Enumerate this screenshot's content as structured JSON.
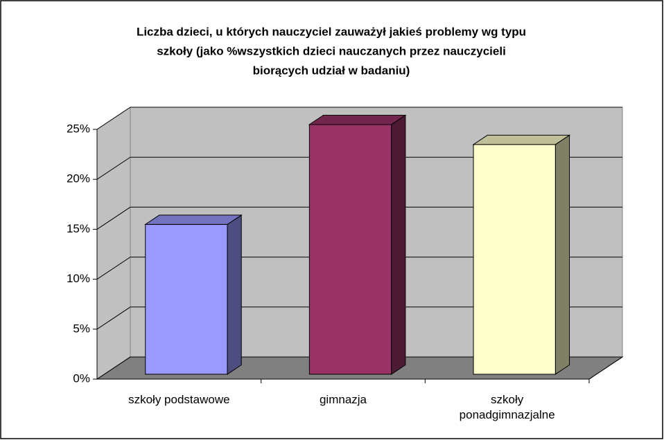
{
  "chart_data": {
    "type": "bar3d",
    "title": [
      "Liczba dzieci, u których nauczyciel zauważył jakieś problemy wg typu",
      "szkoły (jako %wszystkich dzieci nauczanych przez nauczycieli",
      "biorących udział w badaniu)"
    ],
    "categories": [
      "szkoły podstawowe",
      "gimnazja",
      "szkoły ponadgimnazjalne"
    ],
    "values": [
      15,
      25,
      23
    ],
    "colors": [
      "#9999ff",
      "#993366",
      "#ffffcc"
    ],
    "ylim": [
      0,
      25
    ],
    "yticks": [
      {
        "value": 0,
        "label": "0%"
      },
      {
        "value": 5,
        "label": "5%"
      },
      {
        "value": 10,
        "label": "10%"
      },
      {
        "value": 15,
        "label": "15%"
      },
      {
        "value": 20,
        "label": "20%"
      },
      {
        "value": 25,
        "label": "25%"
      }
    ],
    "grid": true
  }
}
